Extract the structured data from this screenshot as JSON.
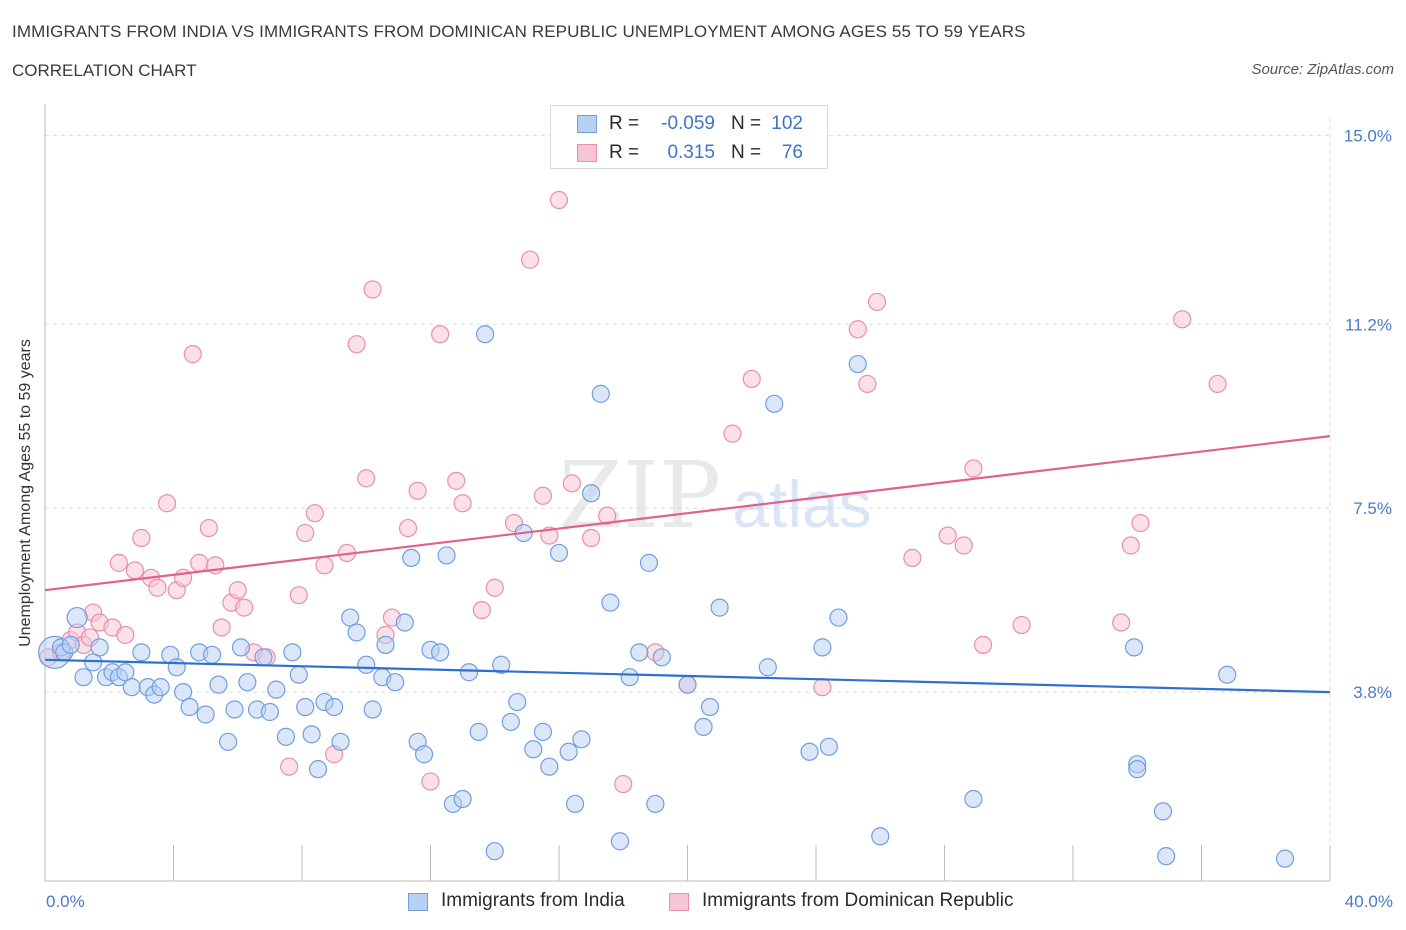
{
  "header": {
    "title": "IMMIGRANTS FROM INDIA VS IMMIGRANTS FROM DOMINICAN REPUBLIC UNEMPLOYMENT AMONG AGES 55 TO 59 YEARS",
    "subtitle": "CORRELATION CHART",
    "source": "Source: ZipAtlas.com"
  },
  "watermark": {
    "zip": "ZIP",
    "atlas": "atlas"
  },
  "legend": {
    "rows": [
      {
        "r_label": "R =",
        "r_value": "-0.059",
        "n_label": "N =",
        "n_value": "102"
      },
      {
        "r_label": "R =",
        "r_value": "0.315",
        "n_label": "N =",
        "n_value": "76"
      }
    ]
  },
  "bottom_legend": {
    "india": "Immigrants from India",
    "dominican": "Immigrants from Dominican Republic"
  },
  "colors": {
    "india_fill": "#b8d0f3",
    "india_stroke": "#6f9fe0",
    "india_line": "#2f6fd0",
    "dominican_fill": "#f7c6d5",
    "dominican_stroke": "#e98fab",
    "dominican_line": "#e0608e",
    "tick_label": "#4a7ac8",
    "grid": "#dddddd"
  },
  "chart_data": {
    "type": "scatter",
    "title": "IMMIGRANTS FROM INDIA VS IMMIGRANTS FROM DOMINICAN REPUBLIC UNEMPLOYMENT AMONG AGES 55 TO 59 YEARS",
    "xlabel": "",
    "ylabel": "Unemployment Among Ages 55 to 59 years",
    "xlim": [
      0,
      40
    ],
    "ylim": [
      0,
      15
    ],
    "x_tick_labels": [
      "0.0%",
      "40.0%"
    ],
    "y_ticks": [
      3.8,
      7.5,
      11.2,
      15.0
    ],
    "y_tick_labels": [
      "3.8%",
      "7.5%",
      "11.2%",
      "15.0%"
    ],
    "grid": true,
    "series": [
      {
        "name": "Immigrants from India",
        "r": -0.059,
        "n": 102,
        "trend": {
          "x": [
            0,
            40
          ],
          "y": [
            4.45,
            3.8
          ]
        },
        "points": [
          [
            0.3,
            4.6
          ],
          [
            0.5,
            4.7
          ],
          [
            0.6,
            4.6
          ],
          [
            0.8,
            4.75
          ],
          [
            1.0,
            5.3
          ],
          [
            1.2,
            4.1
          ],
          [
            1.5,
            4.4
          ],
          [
            1.7,
            4.7
          ],
          [
            1.9,
            4.1
          ],
          [
            2.1,
            4.2
          ],
          [
            2.3,
            4.1
          ],
          [
            2.5,
            4.2
          ],
          [
            2.7,
            3.9
          ],
          [
            3.0,
            4.6
          ],
          [
            3.2,
            3.9
          ],
          [
            3.4,
            3.75
          ],
          [
            3.6,
            3.9
          ],
          [
            3.9,
            4.55
          ],
          [
            4.1,
            4.3
          ],
          [
            4.3,
            3.8
          ],
          [
            4.5,
            3.5
          ],
          [
            4.8,
            4.6
          ],
          [
            5.0,
            3.35
          ],
          [
            5.2,
            4.55
          ],
          [
            5.4,
            3.95
          ],
          [
            5.7,
            2.8
          ],
          [
            5.9,
            3.45
          ],
          [
            6.1,
            4.7
          ],
          [
            6.3,
            4.0
          ],
          [
            6.6,
            3.45
          ],
          [
            6.8,
            4.5
          ],
          [
            7.0,
            3.4
          ],
          [
            7.2,
            3.85
          ],
          [
            7.5,
            2.9
          ],
          [
            7.7,
            4.6
          ],
          [
            7.9,
            4.15
          ],
          [
            8.1,
            3.5
          ],
          [
            8.3,
            2.95
          ],
          [
            8.5,
            2.25
          ],
          [
            8.7,
            3.6
          ],
          [
            9.0,
            3.5
          ],
          [
            9.2,
            2.8
          ],
          [
            9.5,
            5.3
          ],
          [
            9.7,
            5.0
          ],
          [
            10.0,
            4.35
          ],
          [
            10.2,
            3.45
          ],
          [
            10.5,
            4.1
          ],
          [
            10.6,
            4.75
          ],
          [
            10.9,
            4.0
          ],
          [
            11.2,
            5.2
          ],
          [
            11.4,
            6.5
          ],
          [
            11.6,
            2.8
          ],
          [
            11.8,
            2.55
          ],
          [
            12.0,
            4.65
          ],
          [
            12.3,
            4.6
          ],
          [
            12.5,
            6.55
          ],
          [
            12.7,
            1.55
          ],
          [
            13.0,
            1.65
          ],
          [
            13.2,
            4.2
          ],
          [
            13.5,
            3.0
          ],
          [
            13.7,
            11.0
          ],
          [
            14.0,
            0.6
          ],
          [
            14.2,
            4.35
          ],
          [
            14.5,
            3.2
          ],
          [
            14.7,
            3.6
          ],
          [
            14.9,
            7.0
          ],
          [
            15.2,
            2.65
          ],
          [
            15.5,
            3.0
          ],
          [
            15.7,
            2.3
          ],
          [
            16.0,
            6.6
          ],
          [
            16.3,
            2.6
          ],
          [
            16.5,
            1.55
          ],
          [
            16.7,
            2.85
          ],
          [
            17.0,
            7.8
          ],
          [
            17.3,
            9.8
          ],
          [
            17.6,
            5.6
          ],
          [
            17.9,
            0.8
          ],
          [
            18.2,
            4.1
          ],
          [
            18.5,
            4.6
          ],
          [
            18.8,
            6.4
          ],
          [
            19.0,
            1.55
          ],
          [
            19.2,
            4.5
          ],
          [
            20.0,
            3.95
          ],
          [
            20.5,
            3.1
          ],
          [
            20.7,
            3.5
          ],
          [
            21.0,
            5.5
          ],
          [
            22.5,
            4.3
          ],
          [
            22.7,
            9.6
          ],
          [
            23.8,
            2.6
          ],
          [
            24.2,
            4.7
          ],
          [
            24.4,
            2.7
          ],
          [
            24.7,
            5.3
          ],
          [
            25.3,
            10.4
          ],
          [
            26.0,
            0.9
          ],
          [
            28.9,
            1.65
          ],
          [
            33.9,
            4.7
          ],
          [
            34.0,
            2.35
          ],
          [
            34.0,
            2.25
          ],
          [
            34.8,
            1.4
          ],
          [
            34.9,
            0.5
          ],
          [
            36.8,
            4.15
          ],
          [
            38.6,
            0.45
          ]
        ]
      },
      {
        "name": "Immigrants from Dominican Republic",
        "r": 0.315,
        "n": 76,
        "trend": {
          "x": [
            0,
            40
          ],
          "y": [
            5.85,
            8.95
          ]
        },
        "points": [
          [
            0.1,
            4.5
          ],
          [
            0.5,
            4.6
          ],
          [
            0.8,
            4.85
          ],
          [
            1.0,
            5.0
          ],
          [
            1.2,
            4.75
          ],
          [
            1.4,
            4.9
          ],
          [
            1.5,
            5.4
          ],
          [
            1.7,
            5.2
          ],
          [
            2.1,
            5.1
          ],
          [
            2.3,
            6.4
          ],
          [
            2.5,
            4.95
          ],
          [
            2.8,
            6.25
          ],
          [
            3.0,
            6.9
          ],
          [
            3.3,
            6.1
          ],
          [
            3.5,
            5.9
          ],
          [
            3.8,
            7.6
          ],
          [
            4.1,
            5.85
          ],
          [
            4.3,
            6.1
          ],
          [
            4.6,
            10.6
          ],
          [
            4.8,
            6.4
          ],
          [
            5.1,
            7.1
          ],
          [
            5.3,
            6.35
          ],
          [
            5.5,
            5.1
          ],
          [
            5.8,
            5.6
          ],
          [
            6.0,
            5.85
          ],
          [
            6.2,
            5.5
          ],
          [
            6.5,
            4.6
          ],
          [
            6.9,
            4.5
          ],
          [
            7.6,
            2.3
          ],
          [
            7.9,
            5.75
          ],
          [
            8.1,
            7.0
          ],
          [
            8.4,
            7.4
          ],
          [
            8.7,
            6.35
          ],
          [
            9.0,
            2.55
          ],
          [
            9.4,
            6.6
          ],
          [
            9.7,
            10.8
          ],
          [
            10.0,
            8.1
          ],
          [
            10.2,
            11.9
          ],
          [
            10.6,
            4.95
          ],
          [
            10.8,
            5.3
          ],
          [
            11.3,
            7.1
          ],
          [
            11.6,
            7.85
          ],
          [
            12.0,
            2.0
          ],
          [
            12.3,
            11.0
          ],
          [
            12.8,
            8.05
          ],
          [
            13.0,
            7.6
          ],
          [
            13.6,
            5.45
          ],
          [
            14.0,
            5.9
          ],
          [
            14.6,
            7.2
          ],
          [
            15.1,
            12.5
          ],
          [
            15.5,
            7.75
          ],
          [
            15.7,
            6.95
          ],
          [
            16.0,
            13.7
          ],
          [
            16.4,
            8.0
          ],
          [
            17.0,
            6.9
          ],
          [
            17.5,
            7.35
          ],
          [
            18.0,
            1.95
          ],
          [
            19.0,
            4.6
          ],
          [
            20.0,
            3.95
          ],
          [
            21.4,
            9.0
          ],
          [
            22.0,
            10.1
          ],
          [
            24.2,
            3.9
          ],
          [
            25.3,
            11.1
          ],
          [
            25.6,
            10.0
          ],
          [
            25.9,
            11.65
          ],
          [
            27.0,
            6.5
          ],
          [
            28.1,
            6.95
          ],
          [
            28.6,
            6.75
          ],
          [
            28.9,
            8.3
          ],
          [
            29.2,
            4.75
          ],
          [
            30.4,
            5.15
          ],
          [
            33.5,
            5.2
          ],
          [
            33.8,
            6.75
          ],
          [
            34.1,
            7.2
          ],
          [
            35.4,
            11.3
          ],
          [
            36.5,
            10.0
          ]
        ]
      }
    ]
  }
}
